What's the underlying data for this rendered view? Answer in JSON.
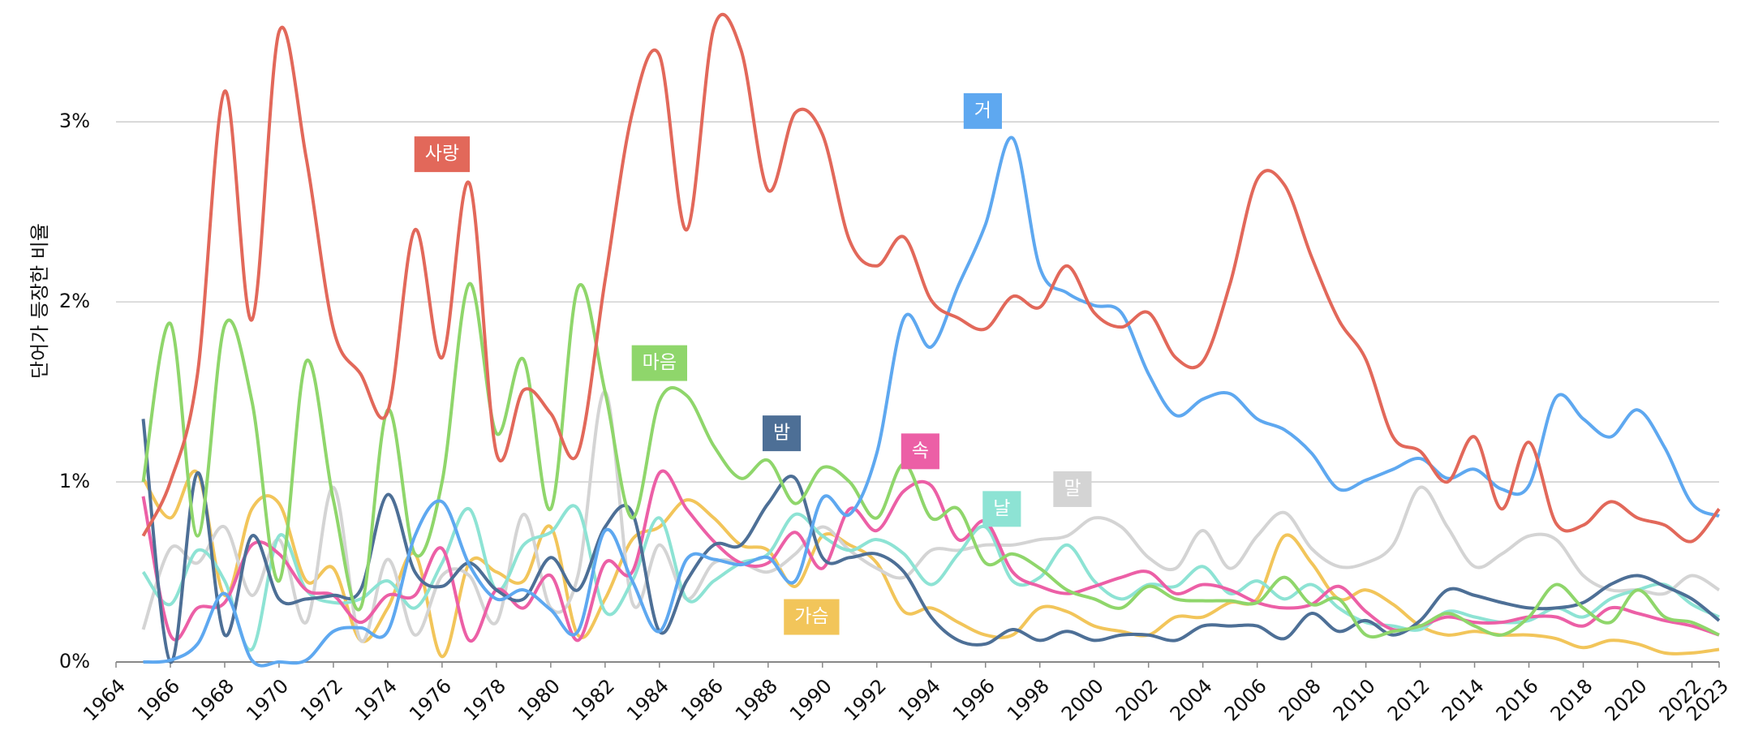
{
  "chart_data": {
    "type": "line",
    "y_label": "단어가 등장한 비율",
    "x": [
      1965,
      1966,
      1967,
      1968,
      1969,
      1970,
      1971,
      1972,
      1973,
      1974,
      1975,
      1976,
      1977,
      1978,
      1979,
      1980,
      1981,
      1982,
      1983,
      1984,
      1985,
      1986,
      1987,
      1988,
      1989,
      1990,
      1991,
      1992,
      1993,
      1994,
      1995,
      1996,
      1997,
      1998,
      1999,
      2000,
      2001,
      2002,
      2003,
      2004,
      2005,
      2006,
      2007,
      2008,
      2009,
      2010,
      2011,
      2012,
      2013,
      2014,
      2015,
      2016,
      2017,
      2018,
      2019,
      2020,
      2021,
      2022,
      2023
    ],
    "xlim": [
      1964,
      2023
    ],
    "xticks": [
      1964,
      1966,
      1968,
      1970,
      1972,
      1974,
      1976,
      1978,
      1980,
      1982,
      1984,
      1986,
      1988,
      1990,
      1992,
      1994,
      1996,
      1998,
      2000,
      2002,
      2004,
      2006,
      2008,
      2010,
      2012,
      2014,
      2016,
      2018,
      2020,
      2022,
      2023
    ],
    "ylim": [
      0,
      3.6
    ],
    "yticks": [
      {
        "value": 0,
        "label": "0%"
      },
      {
        "value": 1,
        "label": "1%"
      },
      {
        "value": 2,
        "label": "2%"
      },
      {
        "value": 3,
        "label": "3%"
      }
    ],
    "grid": true,
    "series": [
      {
        "name": "사랑",
        "color": "#e2685a",
        "values": [
          0.7,
          1.0,
          1.6,
          3.17,
          1.9,
          3.5,
          2.8,
          1.85,
          1.6,
          1.39,
          2.4,
          1.69,
          2.66,
          1.16,
          1.51,
          1.38,
          1.16,
          2.12,
          3.05,
          3.37,
          2.4,
          3.52,
          3.4,
          2.62,
          3.05,
          2.93,
          2.34,
          2.2,
          2.36,
          2.01,
          1.91,
          1.85,
          2.03,
          1.97,
          2.2,
          1.94,
          1.86,
          1.94,
          1.69,
          1.67,
          2.1,
          2.68,
          2.65,
          2.25,
          1.9,
          1.68,
          1.25,
          1.17,
          1.0,
          1.25,
          0.85,
          1.22,
          0.77,
          0.76,
          0.89,
          0.8,
          0.76,
          0.67,
          0.85
        ]
      },
      {
        "name": "거",
        "color": "#5ea8f0",
        "values": [
          0,
          0.01,
          0.1,
          0.38,
          0.01,
          0,
          0.01,
          0.17,
          0.19,
          0.17,
          0.7,
          0.89,
          0.54,
          0.35,
          0.4,
          0.29,
          0.17,
          0.73,
          0.45,
          0.17,
          0.57,
          0.57,
          0.54,
          0.58,
          0.45,
          0.91,
          0.82,
          1.16,
          1.91,
          1.75,
          2.09,
          2.43,
          2.91,
          2.19,
          2.05,
          1.98,
          1.94,
          1.6,
          1.37,
          1.46,
          1.49,
          1.35,
          1.29,
          1.16,
          0.96,
          1.01,
          1.07,
          1.13,
          1.02,
          1.07,
          0.96,
          0.98,
          1.47,
          1.35,
          1.25,
          1.4,
          1.19,
          0.88,
          0.81
        ]
      },
      {
        "name": "마음",
        "color": "#8fd66b",
        "values": [
          1.0,
          1.88,
          0.7,
          1.87,
          1.45,
          0.45,
          1.67,
          0.9,
          0.3,
          1.4,
          0.6,
          1.0,
          2.1,
          1.27,
          1.68,
          0.85,
          2.08,
          1.5,
          0.8,
          1.45,
          1.48,
          1.2,
          1.02,
          1.12,
          0.88,
          1.08,
          1.0,
          0.8,
          1.1,
          0.8,
          0.85,
          0.55,
          0.6,
          0.52,
          0.4,
          0.35,
          0.3,
          0.42,
          0.35,
          0.34,
          0.34,
          0.33,
          0.47,
          0.32,
          0.35,
          0.15,
          0.17,
          0.2,
          0.27,
          0.2,
          0.15,
          0.25,
          0.43,
          0.3,
          0.22,
          0.4,
          0.25,
          0.22,
          0.15
        ]
      },
      {
        "name": "밤",
        "color": "#4d6f96",
        "values": [
          1.35,
          0.0,
          1.05,
          0.15,
          0.7,
          0.35,
          0.35,
          0.37,
          0.4,
          0.93,
          0.5,
          0.42,
          0.55,
          0.4,
          0.35,
          0.58,
          0.4,
          0.75,
          0.83,
          0.17,
          0.45,
          0.65,
          0.65,
          0.88,
          1.02,
          0.58,
          0.58,
          0.6,
          0.5,
          0.25,
          0.12,
          0.1,
          0.18,
          0.12,
          0.17,
          0.12,
          0.15,
          0.15,
          0.12,
          0.2,
          0.2,
          0.2,
          0.13,
          0.27,
          0.17,
          0.23,
          0.15,
          0.23,
          0.4,
          0.37,
          0.33,
          0.3,
          0.3,
          0.33,
          0.43,
          0.48,
          0.42,
          0.35,
          0.23
        ]
      },
      {
        "name": "속",
        "color": "#ec5fa6",
        "values": [
          0.92,
          0.15,
          0.3,
          0.33,
          0.65,
          0.6,
          0.4,
          0.37,
          0.22,
          0.37,
          0.37,
          0.63,
          0.12,
          0.4,
          0.3,
          0.48,
          0.12,
          0.55,
          0.5,
          1.05,
          0.85,
          0.67,
          0.55,
          0.55,
          0.72,
          0.52,
          0.85,
          0.73,
          0.95,
          0.98,
          0.68,
          0.78,
          0.5,
          0.42,
          0.38,
          0.42,
          0.47,
          0.5,
          0.38,
          0.43,
          0.4,
          0.33,
          0.3,
          0.32,
          0.42,
          0.28,
          0.18,
          0.2,
          0.25,
          0.22,
          0.22,
          0.25,
          0.25,
          0.2,
          0.3,
          0.27,
          0.23,
          0.2,
          0.15
        ]
      },
      {
        "name": "날",
        "color": "#8de3d4",
        "values": [
          0.5,
          0.32,
          0.62,
          0.45,
          0.07,
          0.7,
          0.4,
          0.33,
          0.35,
          0.45,
          0.3,
          0.55,
          0.85,
          0.4,
          0.65,
          0.72,
          0.85,
          0.28,
          0.45,
          0.8,
          0.35,
          0.45,
          0.55,
          0.6,
          0.82,
          0.7,
          0.62,
          0.68,
          0.6,
          0.43,
          0.6,
          0.75,
          0.45,
          0.47,
          0.65,
          0.45,
          0.35,
          0.43,
          0.42,
          0.53,
          0.38,
          0.45,
          0.35,
          0.43,
          0.3,
          0.22,
          0.2,
          0.18,
          0.28,
          0.25,
          0.22,
          0.23,
          0.3,
          0.25,
          0.35,
          0.4,
          0.43,
          0.32,
          0.25
        ]
      },
      {
        "name": "말",
        "color": "#d4d4d4",
        "values": [
          0.18,
          0.63,
          0.55,
          0.75,
          0.37,
          0.68,
          0.22,
          0.97,
          0.12,
          0.57,
          0.15,
          0.48,
          0.48,
          0.22,
          0.82,
          0.3,
          0.48,
          1.5,
          0.33,
          0.65,
          0.35,
          0.55,
          0.55,
          0.5,
          0.6,
          0.75,
          0.62,
          0.52,
          0.47,
          0.62,
          0.62,
          0.65,
          0.65,
          0.68,
          0.7,
          0.8,
          0.75,
          0.58,
          0.52,
          0.73,
          0.52,
          0.7,
          0.83,
          0.63,
          0.53,
          0.55,
          0.65,
          0.97,
          0.75,
          0.53,
          0.6,
          0.7,
          0.68,
          0.48,
          0.4,
          0.4,
          0.38,
          0.48,
          0.4
        ]
      },
      {
        "name": "가슴",
        "color": "#f2c55a",
        "values": [
          1.02,
          0.8,
          1.05,
          0.37,
          0.85,
          0.88,
          0.45,
          0.52,
          0.12,
          0.3,
          0.6,
          0.03,
          0.55,
          0.5,
          0.45,
          0.75,
          0.15,
          0.35,
          0.68,
          0.75,
          0.9,
          0.8,
          0.65,
          0.62,
          0.42,
          0.7,
          0.65,
          0.55,
          0.28,
          0.3,
          0.22,
          0.15,
          0.15,
          0.3,
          0.28,
          0.2,
          0.17,
          0.15,
          0.25,
          0.25,
          0.33,
          0.35,
          0.7,
          0.55,
          0.35,
          0.4,
          0.32,
          0.2,
          0.15,
          0.17,
          0.15,
          0.15,
          0.13,
          0.08,
          0.12,
          0.1,
          0.05,
          0.05,
          0.07
        ]
      }
    ]
  }
}
